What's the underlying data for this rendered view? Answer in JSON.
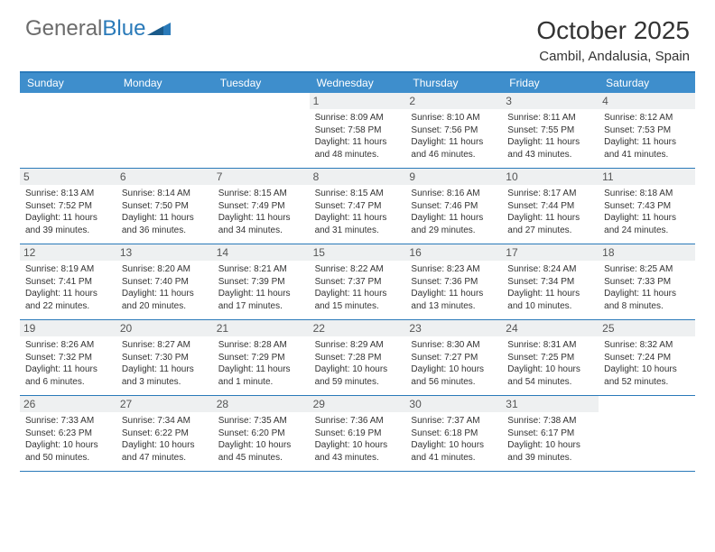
{
  "brand": {
    "text1": "General",
    "text2": "Blue"
  },
  "title": "October 2025",
  "location": "Cambil, Andalusia, Spain",
  "colors": {
    "header_bg": "#3e8ecc",
    "border": "#2a7ab9",
    "daynum_bg": "#eef0f1",
    "text": "#333333",
    "logo_gray": "#6b6b6b"
  },
  "day_names": [
    "Sunday",
    "Monday",
    "Tuesday",
    "Wednesday",
    "Thursday",
    "Friday",
    "Saturday"
  ],
  "weeks": [
    [
      {
        "n": "",
        "sr": "",
        "ss": "",
        "dl": ""
      },
      {
        "n": "",
        "sr": "",
        "ss": "",
        "dl": ""
      },
      {
        "n": "",
        "sr": "",
        "ss": "",
        "dl": ""
      },
      {
        "n": "1",
        "sr": "Sunrise: 8:09 AM",
        "ss": "Sunset: 7:58 PM",
        "dl": "Daylight: 11 hours and 48 minutes."
      },
      {
        "n": "2",
        "sr": "Sunrise: 8:10 AM",
        "ss": "Sunset: 7:56 PM",
        "dl": "Daylight: 11 hours and 46 minutes."
      },
      {
        "n": "3",
        "sr": "Sunrise: 8:11 AM",
        "ss": "Sunset: 7:55 PM",
        "dl": "Daylight: 11 hours and 43 minutes."
      },
      {
        "n": "4",
        "sr": "Sunrise: 8:12 AM",
        "ss": "Sunset: 7:53 PM",
        "dl": "Daylight: 11 hours and 41 minutes."
      }
    ],
    [
      {
        "n": "5",
        "sr": "Sunrise: 8:13 AM",
        "ss": "Sunset: 7:52 PM",
        "dl": "Daylight: 11 hours and 39 minutes."
      },
      {
        "n": "6",
        "sr": "Sunrise: 8:14 AM",
        "ss": "Sunset: 7:50 PM",
        "dl": "Daylight: 11 hours and 36 minutes."
      },
      {
        "n": "7",
        "sr": "Sunrise: 8:15 AM",
        "ss": "Sunset: 7:49 PM",
        "dl": "Daylight: 11 hours and 34 minutes."
      },
      {
        "n": "8",
        "sr": "Sunrise: 8:15 AM",
        "ss": "Sunset: 7:47 PM",
        "dl": "Daylight: 11 hours and 31 minutes."
      },
      {
        "n": "9",
        "sr": "Sunrise: 8:16 AM",
        "ss": "Sunset: 7:46 PM",
        "dl": "Daylight: 11 hours and 29 minutes."
      },
      {
        "n": "10",
        "sr": "Sunrise: 8:17 AM",
        "ss": "Sunset: 7:44 PM",
        "dl": "Daylight: 11 hours and 27 minutes."
      },
      {
        "n": "11",
        "sr": "Sunrise: 8:18 AM",
        "ss": "Sunset: 7:43 PM",
        "dl": "Daylight: 11 hours and 24 minutes."
      }
    ],
    [
      {
        "n": "12",
        "sr": "Sunrise: 8:19 AM",
        "ss": "Sunset: 7:41 PM",
        "dl": "Daylight: 11 hours and 22 minutes."
      },
      {
        "n": "13",
        "sr": "Sunrise: 8:20 AM",
        "ss": "Sunset: 7:40 PM",
        "dl": "Daylight: 11 hours and 20 minutes."
      },
      {
        "n": "14",
        "sr": "Sunrise: 8:21 AM",
        "ss": "Sunset: 7:39 PM",
        "dl": "Daylight: 11 hours and 17 minutes."
      },
      {
        "n": "15",
        "sr": "Sunrise: 8:22 AM",
        "ss": "Sunset: 7:37 PM",
        "dl": "Daylight: 11 hours and 15 minutes."
      },
      {
        "n": "16",
        "sr": "Sunrise: 8:23 AM",
        "ss": "Sunset: 7:36 PM",
        "dl": "Daylight: 11 hours and 13 minutes."
      },
      {
        "n": "17",
        "sr": "Sunrise: 8:24 AM",
        "ss": "Sunset: 7:34 PM",
        "dl": "Daylight: 11 hours and 10 minutes."
      },
      {
        "n": "18",
        "sr": "Sunrise: 8:25 AM",
        "ss": "Sunset: 7:33 PM",
        "dl": "Daylight: 11 hours and 8 minutes."
      }
    ],
    [
      {
        "n": "19",
        "sr": "Sunrise: 8:26 AM",
        "ss": "Sunset: 7:32 PM",
        "dl": "Daylight: 11 hours and 6 minutes."
      },
      {
        "n": "20",
        "sr": "Sunrise: 8:27 AM",
        "ss": "Sunset: 7:30 PM",
        "dl": "Daylight: 11 hours and 3 minutes."
      },
      {
        "n": "21",
        "sr": "Sunrise: 8:28 AM",
        "ss": "Sunset: 7:29 PM",
        "dl": "Daylight: 11 hours and 1 minute."
      },
      {
        "n": "22",
        "sr": "Sunrise: 8:29 AM",
        "ss": "Sunset: 7:28 PM",
        "dl": "Daylight: 10 hours and 59 minutes."
      },
      {
        "n": "23",
        "sr": "Sunrise: 8:30 AM",
        "ss": "Sunset: 7:27 PM",
        "dl": "Daylight: 10 hours and 56 minutes."
      },
      {
        "n": "24",
        "sr": "Sunrise: 8:31 AM",
        "ss": "Sunset: 7:25 PM",
        "dl": "Daylight: 10 hours and 54 minutes."
      },
      {
        "n": "25",
        "sr": "Sunrise: 8:32 AM",
        "ss": "Sunset: 7:24 PM",
        "dl": "Daylight: 10 hours and 52 minutes."
      }
    ],
    [
      {
        "n": "26",
        "sr": "Sunrise: 7:33 AM",
        "ss": "Sunset: 6:23 PM",
        "dl": "Daylight: 10 hours and 50 minutes."
      },
      {
        "n": "27",
        "sr": "Sunrise: 7:34 AM",
        "ss": "Sunset: 6:22 PM",
        "dl": "Daylight: 10 hours and 47 minutes."
      },
      {
        "n": "28",
        "sr": "Sunrise: 7:35 AM",
        "ss": "Sunset: 6:20 PM",
        "dl": "Daylight: 10 hours and 45 minutes."
      },
      {
        "n": "29",
        "sr": "Sunrise: 7:36 AM",
        "ss": "Sunset: 6:19 PM",
        "dl": "Daylight: 10 hours and 43 minutes."
      },
      {
        "n": "30",
        "sr": "Sunrise: 7:37 AM",
        "ss": "Sunset: 6:18 PM",
        "dl": "Daylight: 10 hours and 41 minutes."
      },
      {
        "n": "31",
        "sr": "Sunrise: 7:38 AM",
        "ss": "Sunset: 6:17 PM",
        "dl": "Daylight: 10 hours and 39 minutes."
      },
      {
        "n": "",
        "sr": "",
        "ss": "",
        "dl": ""
      }
    ]
  ]
}
